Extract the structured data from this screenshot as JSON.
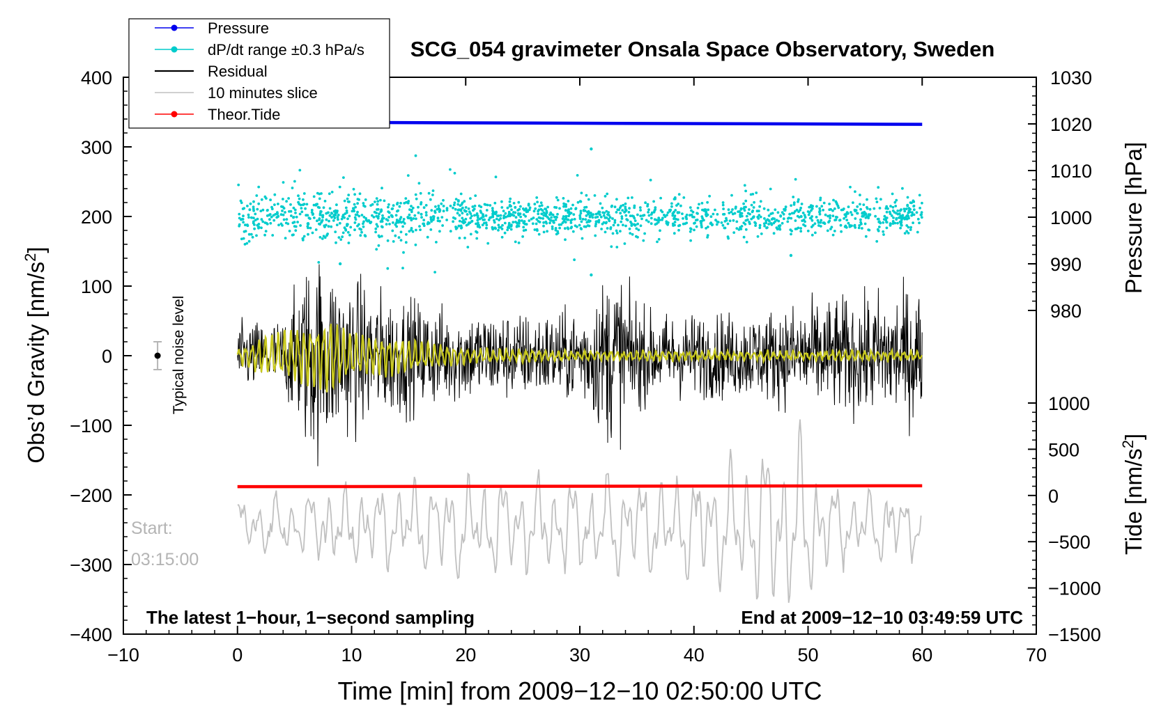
{
  "chart_data": {
    "type": "line",
    "title": "SCG_054 gravimeter Onsala Space Observatory, Sweden",
    "xlabel": "Time [min] from 2009−12−10 02:50:00 UTC",
    "ylabel": "Obs’d Gravity [nm/s²]",
    "ylabel_right_pressure": "Pressure [hPa]",
    "ylabel_right_tide": "Tide [nm/s²]",
    "xlim": [
      -10,
      70
    ],
    "ylim": [
      -400,
      400
    ],
    "x_ticks": [
      -10,
      0,
      10,
      20,
      30,
      40,
      50,
      60,
      70
    ],
    "x_tick_labels": [
      "−10",
      "0",
      "10",
      "20",
      "30",
      "40",
      "50",
      "60",
      "70"
    ],
    "y_ticks": [
      -400,
      -300,
      -200,
      -100,
      0,
      100,
      200,
      300,
      400
    ],
    "y_tick_labels": [
      "−400",
      "−300",
      "−200",
      "−100",
      "0",
      "100",
      "200",
      "300",
      "400"
    ],
    "pressure_axis": {
      "ylim": [
        980,
        1030
      ],
      "ticks": [
        980,
        990,
        1000,
        1010,
        1020,
        1030
      ],
      "tick_labels": [
        "980",
        "990",
        "1000",
        "1010",
        "1020",
        "1030"
      ],
      "gravity_at_980": 65,
      "gravity_at_1030": 400
    },
    "tide_axis": {
      "ylim": [
        -1500,
        1000
      ],
      "ticks": [
        -1500,
        -1000,
        -500,
        0,
        500,
        1000
      ],
      "tick_labels": [
        "−1500",
        "−1000",
        "−500",
        "0",
        "500",
        "1000"
      ],
      "gravity_at_minus1500": -400,
      "gravity_at_1000": -68
    },
    "legend": {
      "placement": "top-left",
      "entries": [
        {
          "label": "Pressure",
          "color": "#0000ee",
          "marker": true
        },
        {
          "label": "dP/dt range ±0.3 hPa/s",
          "color": "#00cccc",
          "marker": true
        },
        {
          "label": "Residual",
          "color": "#000000",
          "marker": false
        },
        {
          "label": "10 minutes slice",
          "color": "#c0c0c0",
          "marker": false
        },
        {
          "label": "Theor.Tide",
          "color": "#ff0000",
          "marker": true
        }
      ]
    },
    "series": [
      {
        "name": "Pressure",
        "axis": "pressure",
        "color": "#0000ee",
        "x": [
          0,
          60
        ],
        "values": [
          1020.4,
          1019.9
        ]
      },
      {
        "name": "dP/dt range ±0.3 hPa/s",
        "axis": "gravity",
        "color": "#00cccc",
        "x_range": [
          0,
          60
        ],
        "center": 200,
        "spread": 12,
        "outliers": [
          [
            31,
            297
          ],
          [
            31,
            116
          ],
          [
            9,
            132
          ],
          [
            48.5,
            144
          ]
        ]
      },
      {
        "name": "Residual",
        "axis": "gravity",
        "color": "#000000",
        "x_range": [
          0,
          60
        ],
        "center": 0,
        "envelope": [
          [
            0,
            55
          ],
          [
            4,
            60
          ],
          [
            6.5,
            170
          ],
          [
            8,
            150
          ],
          [
            12,
            110
          ],
          [
            18,
            80
          ],
          [
            25,
            70
          ],
          [
            30,
            75
          ],
          [
            33,
            150
          ],
          [
            36,
            70
          ],
          [
            45,
            70
          ],
          [
            50,
            90
          ],
          [
            55,
            100
          ],
          [
            60,
            120
          ]
        ]
      },
      {
        "name": "Smoothed residual",
        "axis": "gravity",
        "color": "#c8c81e",
        "x_range": [
          0,
          60
        ],
        "center": 0,
        "envelope": [
          [
            0,
            10
          ],
          [
            3,
            30
          ],
          [
            7,
            45
          ],
          [
            8,
            55
          ],
          [
            10,
            30
          ],
          [
            14,
            25
          ],
          [
            20,
            10
          ],
          [
            30,
            6
          ],
          [
            60,
            6
          ]
        ]
      },
      {
        "name": "10 minutes slice",
        "axis": "gravity",
        "color": "#c0c0c0",
        "x_range": [
          0,
          60
        ],
        "center": -245,
        "envelope": [
          [
            0,
            40
          ],
          [
            20,
            75
          ],
          [
            30,
            70
          ],
          [
            40,
            80
          ],
          [
            46,
            120
          ],
          [
            49,
            140
          ],
          [
            52,
            60
          ],
          [
            60,
            45
          ]
        ]
      },
      {
        "name": "Theor.Tide",
        "axis": "tide",
        "color": "#ff0000",
        "x": [
          0,
          60
        ],
        "values": [
          95,
          105
        ]
      }
    ],
    "noise_marker": {
      "x": -7,
      "y": 0,
      "error": 20,
      "label": "Typical noise level"
    },
    "annotations": {
      "start_label": "Start:",
      "start_time": "03:15:00",
      "bottom_left": "The latest 1−hour, 1−second sampling",
      "bottom_right": "End at 2009−12−10 03:49:59 UTC"
    }
  }
}
